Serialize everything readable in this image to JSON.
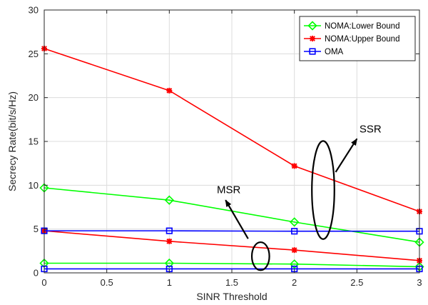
{
  "chart_data": {
    "type": "line",
    "title": "",
    "xlabel": "SINR Threshold",
    "ylabel": "Secrecy Rate(bit/s/Hz)",
    "xlim": [
      0,
      3
    ],
    "ylim": [
      0,
      30
    ],
    "xticks": [
      0,
      0.5,
      1,
      1.5,
      2,
      2.5,
      3
    ],
    "xtick_labels": [
      "0",
      "0.5",
      "1",
      "1.5",
      "2",
      "2.5",
      "3"
    ],
    "yticks": [
      0,
      5,
      10,
      15,
      20,
      25,
      30
    ],
    "ytick_labels": [
      "0",
      "5",
      "10",
      "15",
      "20",
      "25",
      "30"
    ],
    "grid": true,
    "legend_position": "top-right",
    "series": [
      {
        "name": "NOMA:Lower Bound",
        "color": "#00ff00",
        "marker": "diamond",
        "lines": [
          {
            "x": [
              0,
              1,
              2,
              3
            ],
            "y": [
              9.7,
              8.3,
              5.8,
              3.5
            ]
          },
          {
            "x": [
              0,
              1,
              2,
              3
            ],
            "y": [
              1.1,
              1.1,
              1.0,
              0.7
            ]
          }
        ]
      },
      {
        "name": "NOMA:Upper Bound",
        "color": "#ff0000",
        "marker": "star",
        "lines": [
          {
            "x": [
              0,
              1,
              2,
              3
            ],
            "y": [
              25.6,
              20.8,
              12.2,
              7.0
            ]
          },
          {
            "x": [
              0,
              1,
              2,
              3
            ],
            "y": [
              4.8,
              3.6,
              2.6,
              1.4
            ]
          }
        ]
      },
      {
        "name": "OMA",
        "color": "#0000ff",
        "marker": "square",
        "lines": [
          {
            "x": [
              0,
              1,
              2,
              3
            ],
            "y": [
              4.8,
              4.8,
              4.75,
              4.75
            ]
          },
          {
            "x": [
              0,
              1,
              2,
              3
            ],
            "y": [
              0.45,
              0.45,
              0.45,
              0.45
            ]
          }
        ]
      }
    ],
    "annotations": [
      {
        "text": "SSR",
        "ellipse": {
          "cx": 2.23,
          "cy": 9.45,
          "rx": 0.09,
          "ry": 5.6
        },
        "arrow_from": [
          2.33,
          11.5
        ],
        "arrow_to": [
          2.5,
          15.3
        ],
        "label_at": [
          2.52,
          16.0
        ]
      },
      {
        "text": "MSR",
        "ellipse": {
          "cx": 1.73,
          "cy": 1.9,
          "rx": 0.07,
          "ry": 1.6
        },
        "arrow_from": [
          1.63,
          3.9
        ],
        "arrow_to": [
          1.45,
          8.3
        ],
        "label_at": [
          1.38,
          9.1
        ]
      }
    ]
  }
}
